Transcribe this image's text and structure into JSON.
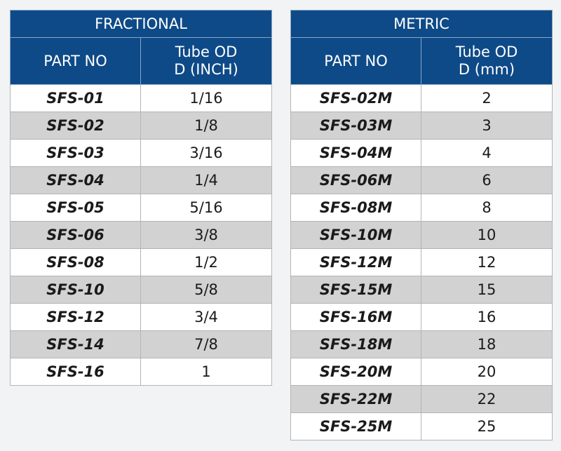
{
  "fractional": {
    "title": "FRACTIONAL",
    "col_part": "PART NO",
    "col_od_line1": "Tube OD",
    "col_od_line2": "D (INCH)",
    "rows": [
      {
        "part": "SFS-01",
        "od": "1/16"
      },
      {
        "part": "SFS-02",
        "od": "1/8"
      },
      {
        "part": "SFS-03",
        "od": "3/16"
      },
      {
        "part": "SFS-04",
        "od": "1/4"
      },
      {
        "part": "SFS-05",
        "od": "5/16"
      },
      {
        "part": "SFS-06",
        "od": "3/8"
      },
      {
        "part": "SFS-08",
        "od": "1/2"
      },
      {
        "part": "SFS-10",
        "od": "5/8"
      },
      {
        "part": "SFS-12",
        "od": "3/4"
      },
      {
        "part": "SFS-14",
        "od": "7/8"
      },
      {
        "part": "SFS-16",
        "od": "1"
      }
    ]
  },
  "metric": {
    "title": "METRIC",
    "col_part": "PART NO",
    "col_od_line1": "Tube OD",
    "col_od_line2": "D (mm)",
    "rows": [
      {
        "part": "SFS-02M",
        "od": "2"
      },
      {
        "part": "SFS-03M",
        "od": "3"
      },
      {
        "part": "SFS-04M",
        "od": "4"
      },
      {
        "part": "SFS-06M",
        "od": "6"
      },
      {
        "part": "SFS-08M",
        "od": "8"
      },
      {
        "part": "SFS-10M",
        "od": "10"
      },
      {
        "part": "SFS-12M",
        "od": "12"
      },
      {
        "part": "SFS-15M",
        "od": "15"
      },
      {
        "part": "SFS-16M",
        "od": "16"
      },
      {
        "part": "SFS-18M",
        "od": "18"
      },
      {
        "part": "SFS-20M",
        "od": "20"
      },
      {
        "part": "SFS-22M",
        "od": "22"
      },
      {
        "part": "SFS-25M",
        "od": "25"
      }
    ]
  },
  "colors": {
    "header": "#0e4a87",
    "alt_row": "#d2d2d2"
  }
}
